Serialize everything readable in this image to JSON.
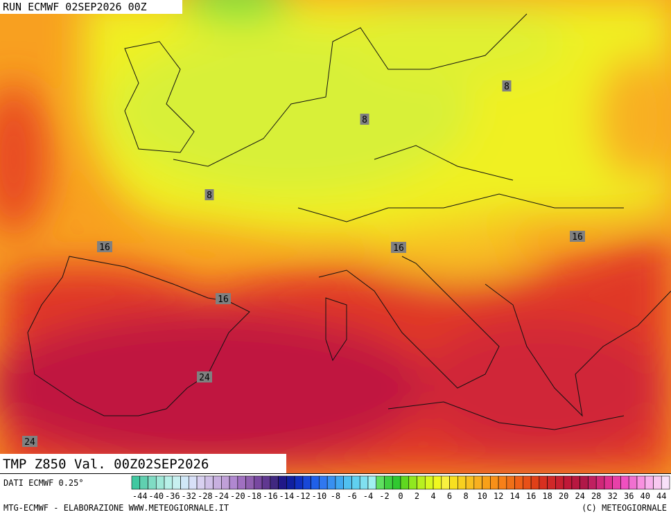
{
  "header": {
    "run": "RUN ECMWF 02SEP2026 00Z"
  },
  "map": {
    "title": "TMP Z850 Val. 00Z02SEP2026",
    "contour_labels": [
      "8",
      "8",
      "8",
      "16",
      "16",
      "16",
      "16",
      "24",
      "24"
    ]
  },
  "legend": {
    "source": "DATI ECMWF 0.25°",
    "labels": [
      -44,
      -40,
      -36,
      -32,
      -28,
      -24,
      -20,
      -18,
      -16,
      -14,
      -12,
      -10,
      -8,
      -6,
      -4,
      -2,
      0,
      2,
      4,
      6,
      8,
      10,
      12,
      14,
      16,
      18,
      20,
      24,
      28,
      32,
      36,
      40,
      44
    ],
    "colors": [
      "#40c8a0",
      "#60d0b0",
      "#80dcc4",
      "#a0e8d8",
      "#b8f0e8",
      "#c8f0f0",
      "#d0e8f8",
      "#d8e0f8",
      "#d8d0f0",
      "#d0c0e8",
      "#c8b0e0",
      "#c0a0d8",
      "#b088d0",
      "#a070c0",
      "#9060b0",
      "#7848a0",
      "#603890",
      "#402880",
      "#201888",
      "#1020a0",
      "#1030c0",
      "#1848d8",
      "#2060e8",
      "#3078f0",
      "#3890f0",
      "#40a8f0",
      "#50c0f0",
      "#60d0f0",
      "#80e0f0",
      "#a0f0f0",
      "#60e060",
      "#40d040",
      "#30c830",
      "#60d820",
      "#90e820",
      "#b8f020",
      "#d8f820",
      "#f0f820",
      "#f8f040",
      "#f8e020",
      "#f8d020",
      "#f8c020",
      "#f8b020",
      "#f8a018",
      "#f89018",
      "#f88018",
      "#f07018",
      "#f06018",
      "#e85018",
      "#e04018",
      "#d83020",
      "#d02828",
      "#c82030",
      "#c01838",
      "#b81840",
      "#b01848",
      "#c02060",
      "#d02878",
      "#e03090",
      "#e840a8",
      "#f050c0",
      "#f070d0",
      "#f890e0",
      "#f8b0ec",
      "#f8c8f0",
      "#f8e0f8"
    ]
  },
  "footer": {
    "left": "MTG-ECMWF - ELABORAZIONE WWW.METEOGIORNALE.IT",
    "right": "(C) METEOGIORNALE"
  }
}
